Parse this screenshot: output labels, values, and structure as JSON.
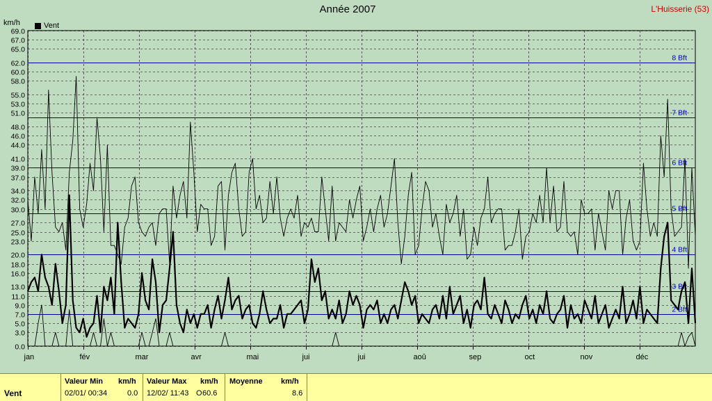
{
  "title": "Année 2007",
  "station": "L'Huisserie (53)",
  "unit_label": "km/h",
  "legend_label": "Vent",
  "chart_data": {
    "type": "line",
    "ylabel": "km/h",
    "ylim": [
      0,
      69
    ],
    "yticks": [
      0.0,
      3.0,
      5.0,
      7.0,
      9.0,
      11.0,
      13.0,
      16.0,
      18.0,
      20.0,
      23.0,
      25.0,
      27.0,
      30.0,
      32.0,
      34.0,
      37.0,
      39.0,
      41.0,
      44.0,
      46.0,
      48.0,
      51.0,
      53.0,
      55.0,
      58.0,
      60.0,
      62.0,
      65.0,
      67.0,
      69.0
    ],
    "months": [
      "jan",
      "fév",
      "mar",
      "avr",
      "mai",
      "jui",
      "jui",
      "aoû",
      "sep",
      "oct",
      "nov",
      "déc"
    ],
    "beaufort": [
      {
        "label": "2 Bft",
        "value": 7
      },
      {
        "label": "3 Bft",
        "value": 12
      },
      {
        "label": "4 Bft",
        "value": 20
      },
      {
        "label": "5 Bft",
        "value": 29
      },
      {
        "label": "6 Bft",
        "value": 39
      },
      {
        "label": "7 Bft",
        "value": 50
      },
      {
        "label": "8 Bft",
        "value": 62
      }
    ],
    "series": [
      {
        "name": "Vent",
        "style": "max",
        "values": [
          32,
          23,
          37,
          29,
          43,
          30,
          56,
          38,
          26,
          25,
          27,
          21,
          38,
          45,
          59,
          30,
          26,
          31,
          40,
          34,
          50,
          41,
          25,
          44,
          22,
          22,
          20,
          18,
          26,
          28,
          35,
          37,
          27,
          25,
          24,
          26,
          27,
          22,
          29,
          30,
          30,
          18,
          35,
          28,
          33,
          36,
          28,
          49,
          38,
          25,
          31,
          30,
          30,
          22,
          24,
          35,
          36,
          21,
          33,
          38,
          40,
          30,
          24,
          25,
          38,
          41,
          30,
          33,
          27,
          28,
          36,
          29,
          37,
          28,
          24,
          28,
          30,
          28,
          33,
          24,
          27,
          26,
          28,
          25,
          25,
          37,
          30,
          23,
          35,
          23,
          27,
          26,
          25,
          32,
          28,
          32,
          35,
          23,
          26,
          30,
          25,
          30,
          33,
          26,
          29,
          35,
          41,
          27,
          18,
          24,
          33,
          38,
          20,
          22,
          30,
          36,
          34,
          26,
          29,
          24,
          20,
          31,
          27,
          29,
          33,
          24,
          30,
          19,
          20,
          26,
          22,
          28,
          30,
          37,
          27,
          29,
          30,
          30,
          21,
          22,
          22,
          25,
          30,
          19,
          24,
          25,
          29,
          27,
          33,
          27,
          39,
          27,
          35,
          25,
          26,
          36,
          25,
          24,
          25,
          20,
          32,
          29,
          29,
          30,
          21,
          29,
          25,
          21,
          34,
          30,
          34,
          34,
          20,
          28,
          32,
          23,
          21,
          23,
          40,
          30,
          24,
          27,
          24,
          46,
          37,
          54,
          30,
          24,
          25,
          26,
          41,
          17,
          39,
          24
        ]
      },
      {
        "name": "Vent",
        "style": "avg",
        "values": [
          12,
          14,
          15,
          12,
          20,
          15,
          13,
          9,
          18,
          12,
          5,
          9,
          33,
          10,
          4,
          3,
          6,
          2,
          4,
          5,
          11,
          3,
          13,
          10,
          15,
          7,
          27,
          14,
          4,
          6,
          5,
          4,
          7,
          16,
          10,
          8,
          19,
          14,
          3,
          9,
          10,
          17,
          25,
          9,
          5,
          3,
          8,
          5,
          7,
          4,
          7,
          7,
          9,
          4,
          8,
          11,
          6,
          10,
          15,
          8,
          10,
          11,
          6,
          8,
          9,
          5,
          4,
          7,
          12,
          8,
          5,
          6,
          6,
          9,
          4,
          7,
          7,
          8,
          9,
          10,
          5,
          8,
          19,
          14,
          17,
          10,
          12,
          6,
          8,
          6,
          10,
          5,
          7,
          12,
          9,
          11,
          9,
          4,
          8,
          9,
          8,
          10,
          5,
          7,
          5,
          8,
          9,
          6,
          10,
          14,
          12,
          9,
          11,
          5,
          7,
          6,
          5,
          8,
          9,
          6,
          11,
          6,
          13,
          7,
          9,
          11,
          5,
          8,
          4,
          9,
          10,
          8,
          15,
          7,
          6,
          9,
          7,
          5,
          10,
          8,
          5,
          7,
          6,
          9,
          11,
          6,
          8,
          5,
          9,
          7,
          12,
          6,
          5,
          7,
          8,
          11,
          4,
          9,
          6,
          7,
          5,
          10,
          8,
          6,
          11,
          5,
          7,
          9,
          4,
          6,
          8,
          6,
          13,
          5,
          7,
          10,
          6,
          13,
          5,
          8,
          7,
          6,
          5,
          17,
          24,
          27,
          10,
          9,
          8,
          12,
          14,
          5,
          17,
          5
        ]
      },
      {
        "name": "Vent",
        "style": "min",
        "values": [
          0,
          0,
          0,
          5,
          9,
          0,
          0,
          0,
          3,
          0,
          0,
          0,
          8,
          0,
          0,
          0,
          0,
          0,
          0,
          3,
          0,
          0,
          6,
          0,
          3,
          0,
          0,
          0,
          0,
          0,
          0,
          0,
          0,
          3,
          0,
          0,
          3,
          6,
          0,
          0,
          0,
          3,
          0,
          0,
          0,
          0,
          0,
          0,
          0,
          0,
          0,
          0,
          0,
          0,
          0,
          0,
          0,
          3,
          0,
          0,
          0,
          0,
          0,
          0,
          0,
          0,
          0,
          0,
          0,
          0,
          0,
          0,
          0,
          0,
          0,
          0,
          0,
          0,
          0,
          0,
          0,
          0,
          0,
          0,
          0,
          0,
          0,
          0,
          0,
          3,
          0,
          0,
          0,
          0,
          0,
          0,
          0,
          0,
          0,
          0,
          0,
          0,
          0,
          0,
          0,
          0,
          0,
          0,
          0,
          0,
          0,
          0,
          0,
          0,
          0,
          0,
          0,
          0,
          0,
          0,
          0,
          0,
          0,
          0,
          0,
          0,
          0,
          0,
          0,
          0,
          0,
          0,
          0,
          0,
          0,
          0,
          0,
          0,
          0,
          0,
          0,
          0,
          0,
          0,
          0,
          0,
          0,
          0,
          0,
          0,
          0,
          0,
          0,
          0,
          0,
          0,
          0,
          0,
          0,
          0,
          0,
          0,
          0,
          0,
          0,
          0,
          0,
          0,
          0,
          0,
          0,
          0,
          0,
          0,
          0,
          0,
          0,
          0,
          0,
          0,
          0,
          0,
          0,
          0,
          0,
          0,
          0,
          0,
          0,
          3,
          0,
          2,
          3,
          0
        ]
      }
    ]
  },
  "footer": {
    "series_label": "Vent",
    "min_header": "Valeur Min",
    "min_unit": "km/h",
    "min_date": "02/01/  00:34",
    "min_value": "0.0",
    "max_header": "Valeur Max",
    "max_unit": "km/h",
    "max_date": "12/02/  11:43",
    "max_value": "60.6",
    "max_value_prefix": "O",
    "avg_header": "Moyenne",
    "avg_unit": "km/h",
    "avg_value": "8.6"
  }
}
